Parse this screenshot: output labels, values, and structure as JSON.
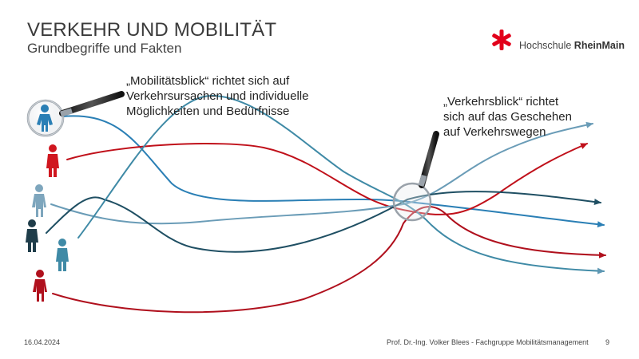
{
  "header": {
    "title": "VERKEHR UND MOBILITÄT",
    "subtitle": "Grundbegriffe und Fakten"
  },
  "logo": {
    "name_part1": "Hochschule ",
    "name_part2": "RheinMain",
    "accent_color": "#e2001a"
  },
  "labels": {
    "mobility_view": [
      "„Mobilitätsblick“ richtet sich auf",
      "Verkehrsursachen und individuelle",
      "Möglichkeiten und Bedürfnisse"
    ],
    "traffic_view": [
      "„Verkehrsblick“ richtet",
      "sich auf das Geschehen",
      "auf Verkehrswegen"
    ]
  },
  "colors": {
    "blue": "#2a7fb5",
    "red": "#c0101a",
    "light_blue": "#6a9cb7",
    "dark_teal": "#1f4f63",
    "teal": "#3f8aa6",
    "dark_red": "#b0101d"
  },
  "footer": {
    "date": "16.04.2024",
    "author": "Prof. Dr.-Ing. Volker Blees - Fachgruppe Mobilitätsmanagement",
    "page": "9"
  }
}
